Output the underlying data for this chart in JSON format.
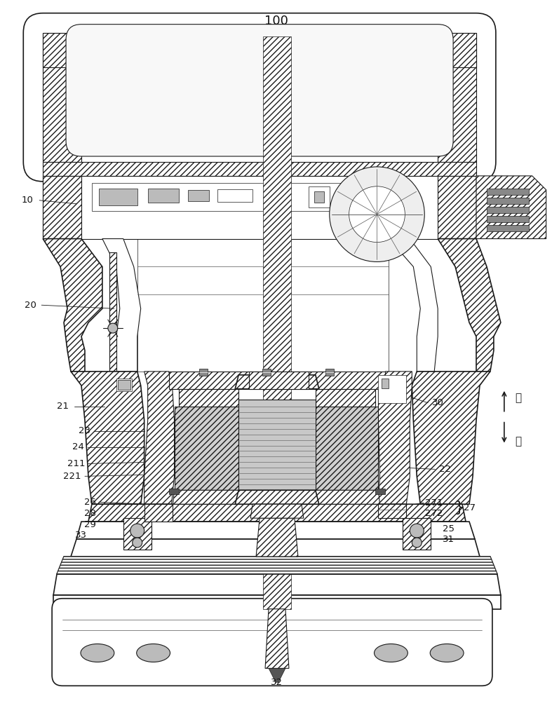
{
  "title": "100",
  "background_color": "#ffffff",
  "line_color": "#1a1a1a",
  "label_color": "#111111",
  "figsize": [
    7.87,
    10.0
  ],
  "dpi": 100,
  "upper_text": "上",
  "lower_text": "下"
}
